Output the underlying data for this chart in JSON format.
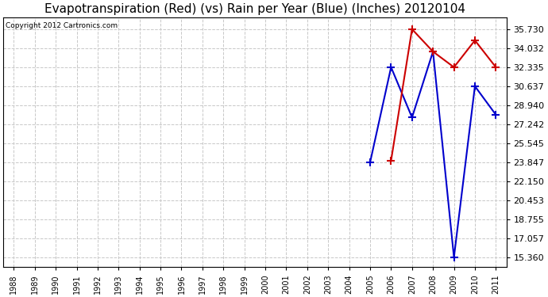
{
  "title": "Evapotranspiration (Red) (vs) Rain per Year (Blue) (Inches) 20120104",
  "copyright_text": "Copyright 2012 Cartronics.com",
  "x_years": [
    1988,
    1989,
    1990,
    1991,
    1992,
    1993,
    1994,
    1995,
    1996,
    1997,
    1998,
    1999,
    2000,
    2001,
    2002,
    2003,
    2004,
    2005,
    2006,
    2007,
    2008,
    2009,
    2010,
    2011
  ],
  "blue_years": [
    2005,
    2006,
    2007,
    2008,
    2009,
    2010,
    2011
  ],
  "blue_values": [
    23.847,
    32.335,
    27.848,
    33.73,
    15.36,
    30.637,
    28.09
  ],
  "red_years": [
    2006,
    2007,
    2008,
    2009,
    2010,
    2011
  ],
  "red_values": [
    24.0,
    35.73,
    33.73,
    32.335,
    34.73,
    32.335
  ],
  "y_ticks": [
    15.36,
    17.057,
    18.755,
    20.453,
    22.15,
    23.847,
    25.545,
    27.242,
    28.94,
    30.637,
    32.335,
    34.032,
    35.73
  ],
  "ylim_min": 14.5,
  "ylim_max": 36.8,
  "fig_bg_color": "#ffffff",
  "plot_bg_color": "#ffffff",
  "grid_color": "#c8c8c8",
  "blue_color": "#0000cc",
  "red_color": "#cc0000",
  "title_fontsize": 11,
  "copyright_fontsize": 6.5,
  "tick_fontsize": 7,
  "ytick_fontsize": 8
}
